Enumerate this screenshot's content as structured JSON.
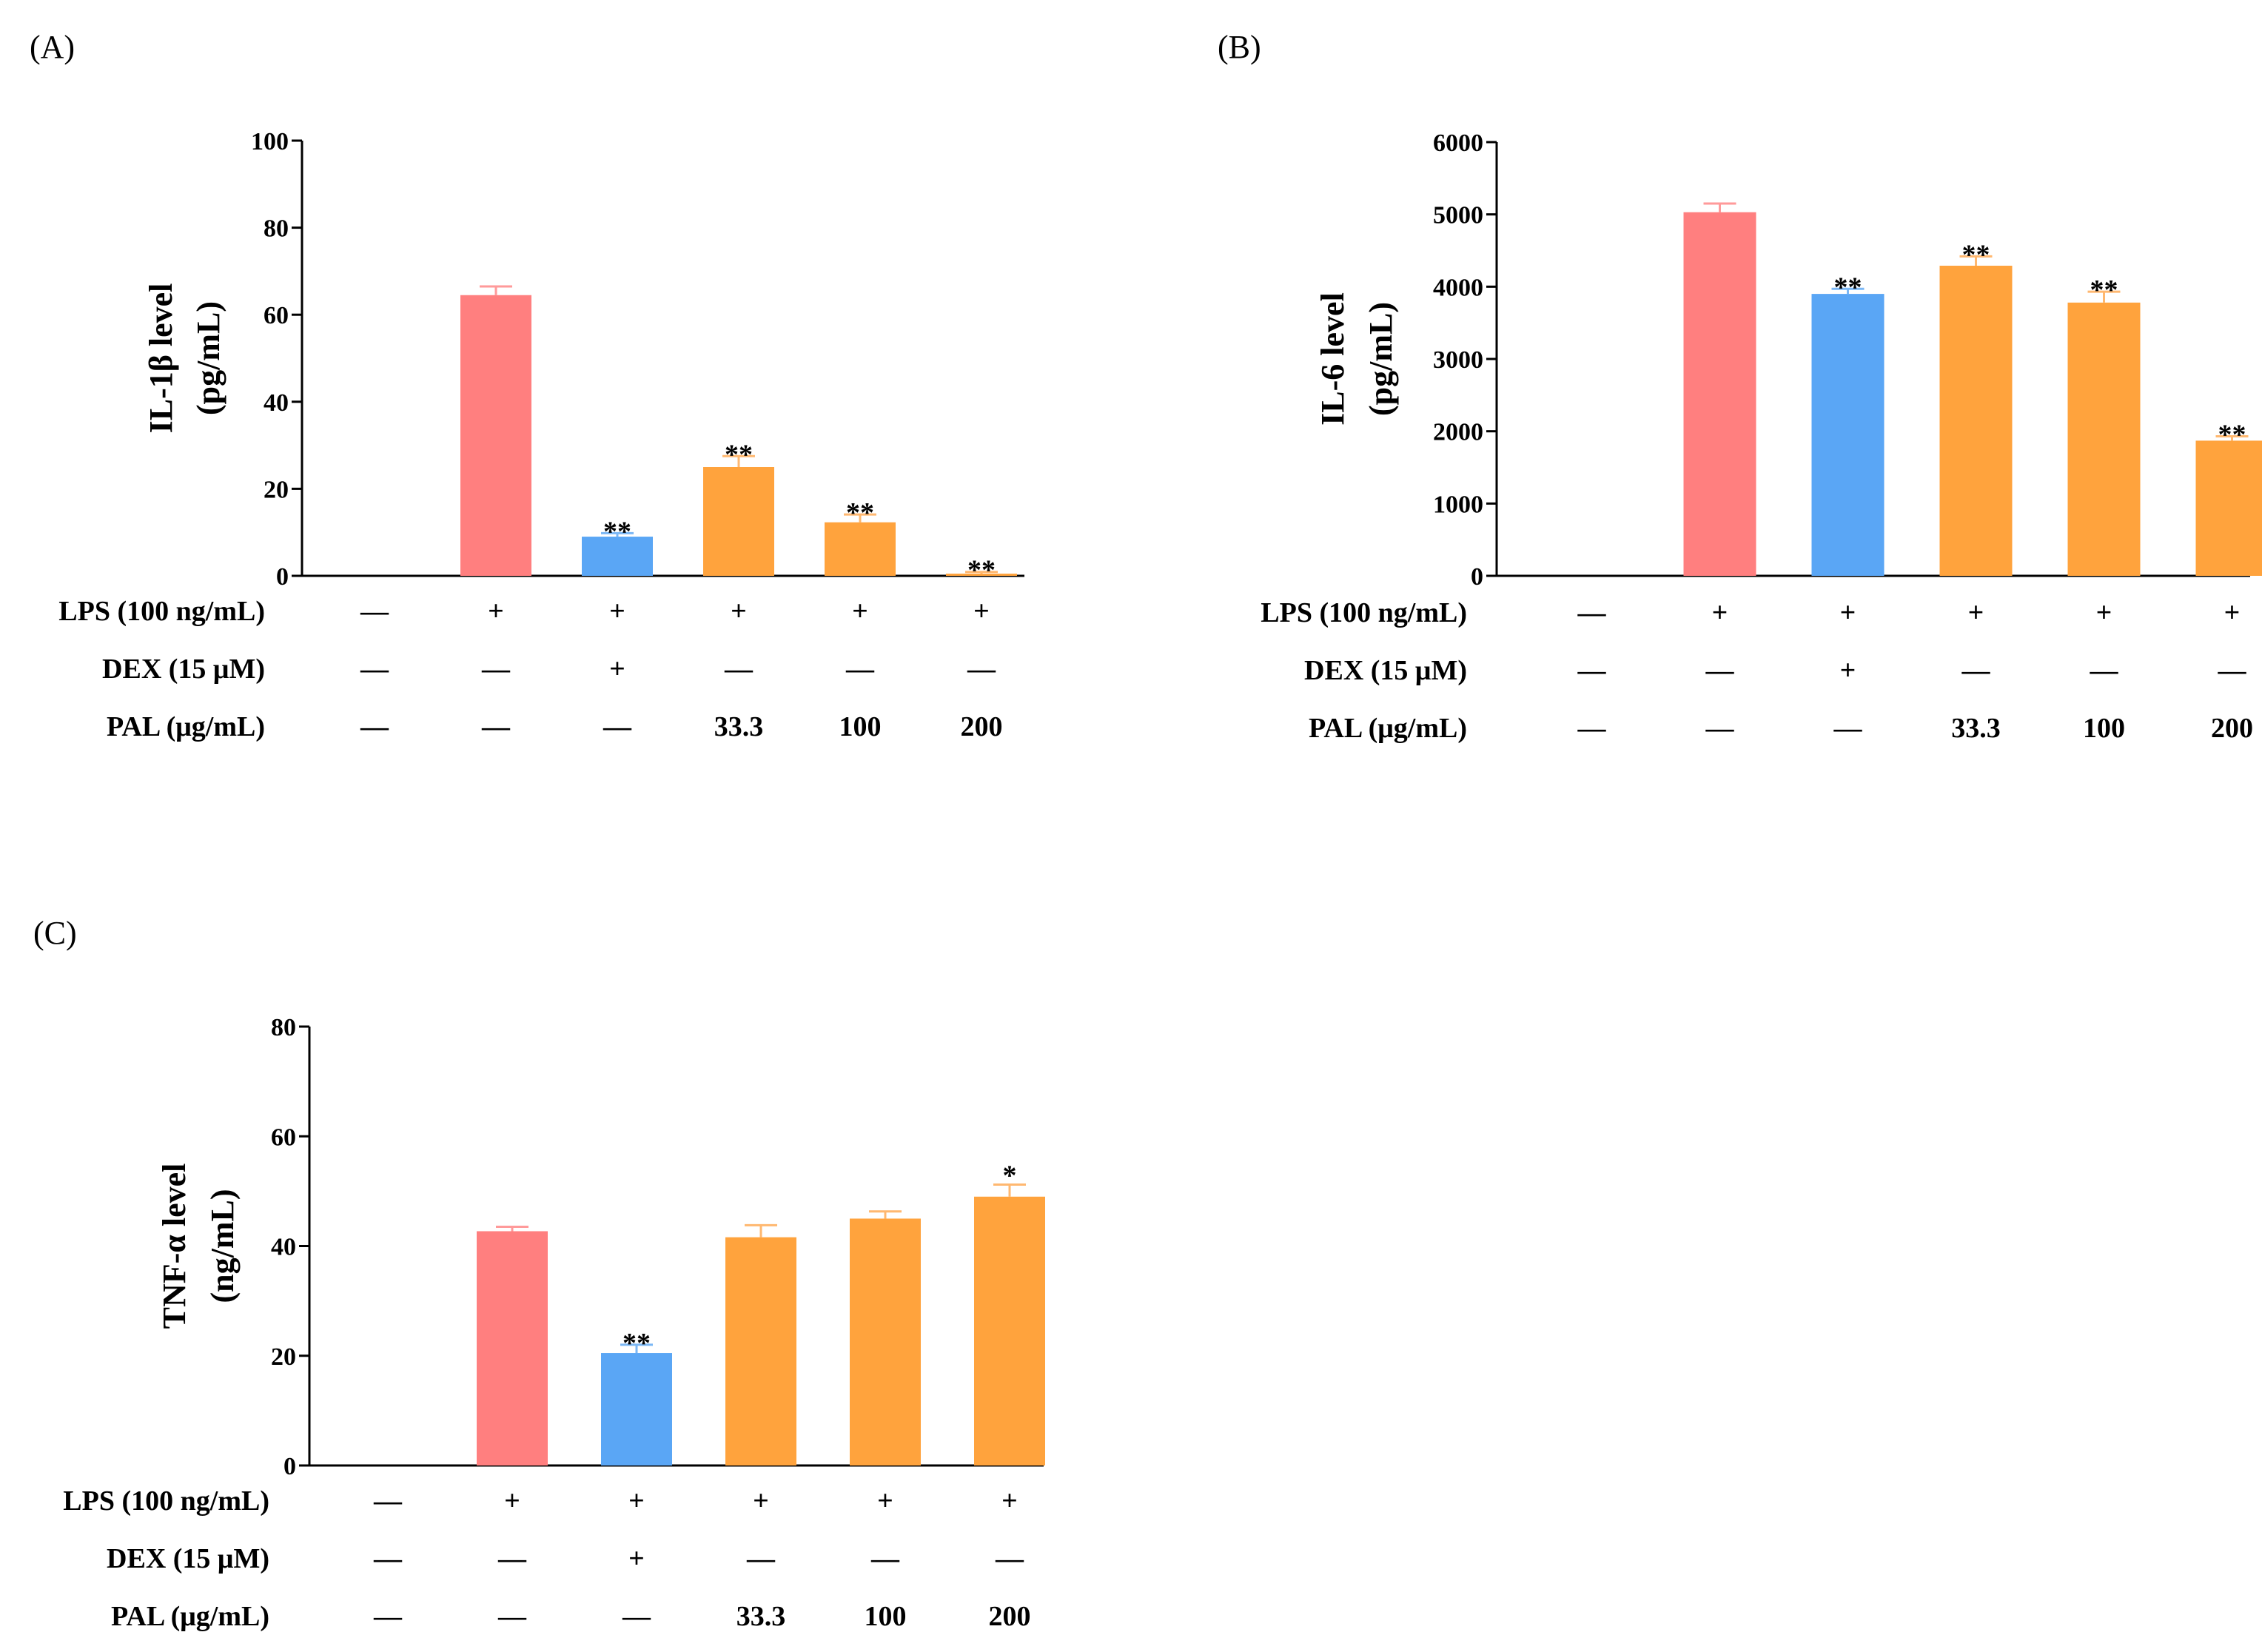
{
  "colors": {
    "control": "#ff7f7f",
    "dex": "#5aa6f5",
    "pal": "#ffa33d",
    "error_control": "#ff9a9a",
    "error_dex": "#7bb7f5",
    "error_pal": "#ffb870",
    "axis": "#000000"
  },
  "row_labels": [
    "LPS (100 ng/mL)",
    "DEX (15 μM)",
    "PAL (μg/mL)"
  ],
  "conditions": {
    "LPS": [
      "—",
      "+",
      "+",
      "+",
      "+",
      "+"
    ],
    "DEX": [
      "—",
      "—",
      "+",
      "—",
      "—",
      "—"
    ],
    "PAL": [
      "—",
      "—",
      "—",
      "33.3",
      "100",
      "200"
    ]
  },
  "chart_data": [
    {
      "panel": "(A)",
      "type": "bar",
      "ylabel_line1": "IL-1β level",
      "ylabel_line2": "(pg/mL)",
      "ylim": [
        0,
        100
      ],
      "yticks": [
        0,
        20,
        40,
        60,
        80,
        100
      ],
      "categories": [
        "control",
        "LPS",
        "LPS+DEX",
        "LPS+PAL 33.3",
        "LPS+PAL 100",
        "LPS+PAL 200"
      ],
      "values": [
        0,
        64.5,
        9,
        25,
        12.3,
        0.5
      ],
      "errors": [
        0,
        2,
        0.8,
        2.5,
        1.8,
        0.4
      ],
      "bar_colors": [
        "control",
        "control",
        "dex",
        "pal",
        "pal",
        "pal"
      ],
      "significance": [
        "",
        "",
        "**",
        "**",
        "**",
        "**"
      ]
    },
    {
      "panel": "(B)",
      "type": "bar",
      "ylabel_line1": "IL-6 level",
      "ylabel_line2": "(pg/mL)",
      "ylim": [
        0,
        6000
      ],
      "yticks": [
        0,
        1000,
        2000,
        3000,
        4000,
        5000,
        6000
      ],
      "categories": [
        "control",
        "LPS",
        "LPS+DEX",
        "LPS+PAL 33.3",
        "LPS+PAL 100",
        "LPS+PAL 200"
      ],
      "values": [
        0,
        5030,
        3900,
        4290,
        3780,
        1870
      ],
      "errors": [
        0,
        120,
        70,
        130,
        150,
        60
      ],
      "bar_colors": [
        "control",
        "control",
        "dex",
        "pal",
        "pal",
        "pal"
      ],
      "significance": [
        "",
        "",
        "**",
        "**",
        "**",
        "**"
      ]
    },
    {
      "panel": "(C)",
      "type": "bar",
      "ylabel_line1": "TNF-α level",
      "ylabel_line2": "(ng/mL)",
      "ylim": [
        0,
        80
      ],
      "yticks": [
        0,
        20,
        40,
        60,
        80
      ],
      "categories": [
        "control",
        "LPS",
        "LPS+DEX",
        "LPS+PAL 33.3",
        "LPS+PAL 100",
        "LPS+PAL 200"
      ],
      "values": [
        0,
        42.7,
        20.5,
        41.6,
        45,
        49
      ],
      "errors": [
        0,
        0.8,
        1.5,
        2.2,
        1.3,
        2.2
      ],
      "bar_colors": [
        "control",
        "control",
        "dex",
        "pal",
        "pal",
        "pal"
      ],
      "significance": [
        "",
        "",
        "**",
        "",
        "",
        "*"
      ]
    }
  ]
}
